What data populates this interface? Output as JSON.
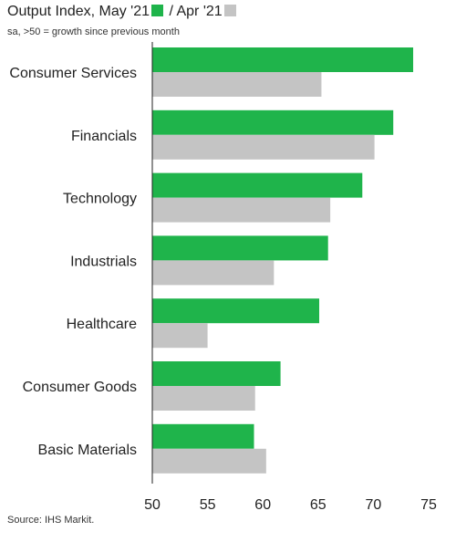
{
  "header": {
    "title_part1": "Output Index, May '21",
    "title_part2": " / Apr '21",
    "subtitle": "sa, >50 = growth since previous month"
  },
  "footer": {
    "source": "Source: IHS Markit."
  },
  "colors": {
    "may": "#1fb44b",
    "apr": "#c4c4c4",
    "axis": "#222222"
  },
  "chart_data": {
    "type": "bar",
    "orientation": "horizontal",
    "title": "Output Index, May '21 / Apr '21",
    "subtitle": "sa, >50 = growth since previous month",
    "categories": [
      "Consumer Services",
      "Financials",
      "Technology",
      "Industrials",
      "Healthcare",
      "Consumer Goods",
      "Basic Materials"
    ],
    "series": [
      {
        "name": "May '21",
        "values": [
          73.6,
          71.8,
          69.0,
          65.9,
          65.1,
          61.6,
          59.2
        ]
      },
      {
        "name": "Apr '21",
        "values": [
          65.3,
          70.1,
          66.1,
          61.0,
          55.0,
          59.3,
          60.3
        ]
      }
    ],
    "xlim": [
      50,
      75
    ],
    "xticks": [
      50,
      55,
      60,
      65,
      70,
      75
    ],
    "grid": false,
    "legend": "inline with title"
  }
}
